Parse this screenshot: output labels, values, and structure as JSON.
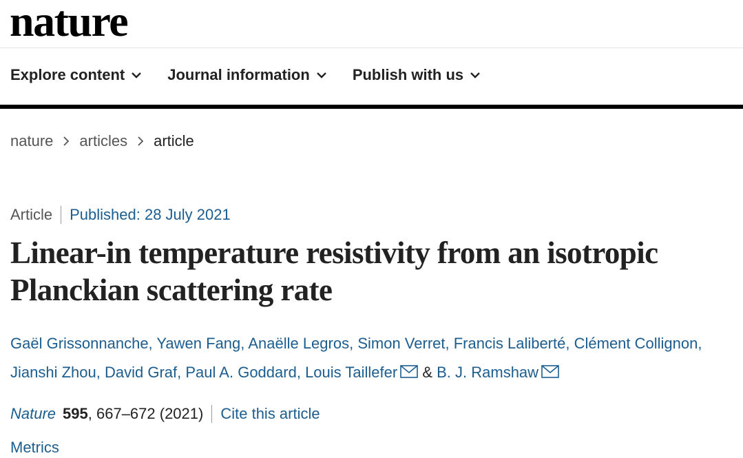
{
  "header": {
    "logo": "nature"
  },
  "nav": [
    "Explore content",
    "Journal information",
    "Publish with us"
  ],
  "breadcrumb": [
    "nature",
    "articles",
    "article"
  ],
  "article": {
    "type": "Article",
    "published": "Published: 28 July 2021",
    "title": "Linear-in temperature resistivity from an isotropic Planckian scattering rate",
    "authors": [
      "Gaël Grissonnanche,",
      "Yawen Fang,",
      "Anaëlle Legros,",
      "Simon Verret,",
      "Francis Laliberté,",
      "Clément Collignon,",
      "Jianshi Zhou,",
      "David Graf,",
      "Paul A. Goddard,",
      "Louis Taillefer",
      "&",
      "B. J. Ramshaw"
    ],
    "citation": {
      "journal": "Nature",
      "volume": "595",
      "rest": ", 667–672 (2021)"
    },
    "cite": "Cite this article",
    "metrics": "Metrics"
  }
}
